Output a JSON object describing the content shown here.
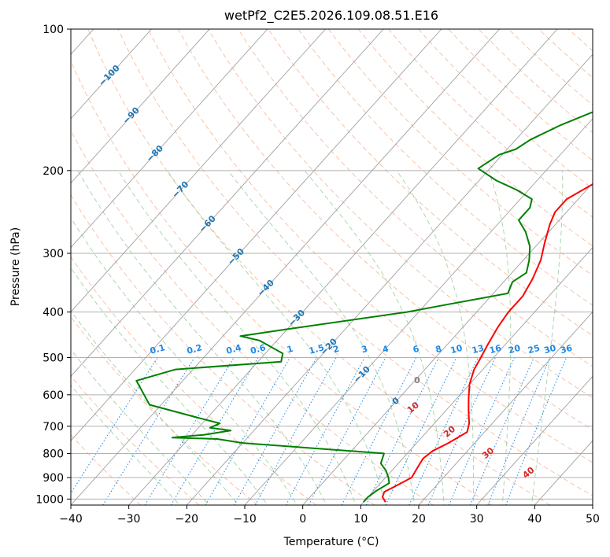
{
  "chart_data": {
    "type": "line",
    "title": "wetPf2_C2E5.2026.109.08.51.E16",
    "xlabel": "Temperature (°C)",
    "ylabel": "Pressure (hPa)",
    "xlim": [
      -40,
      50
    ],
    "ylim": [
      1030,
      100
    ],
    "y_scale": "log",
    "x_ticks": [
      "−40",
      "−30",
      "−20",
      "−10",
      "0",
      "10",
      "20",
      "30",
      "40",
      "50"
    ],
    "x_tick_values": [
      -40,
      -30,
      -20,
      -10,
      0,
      10,
      20,
      30,
      40,
      50
    ],
    "y_ticks": [
      "100",
      "200",
      "300",
      "400",
      "500",
      "600",
      "700",
      "800",
      "900",
      "1000"
    ],
    "y_tick_values": [
      100,
      200,
      300,
      400,
      500,
      600,
      700,
      800,
      900,
      1000
    ],
    "grid": true,
    "colors": {
      "temperature": "#ff0000",
      "dewpoint": "#008000",
      "isotherms": "#a0a0a0",
      "dry_adiabats": "#f4a582",
      "moist_adiabats": "#7fbf7f",
      "mixing_ratio": "#1e88e5",
      "isotherm_labels": "#1f77b4",
      "moist_labels": "#d62728",
      "zero_label": "#808080",
      "mixing_labels": "#1e88e5"
    },
    "series": [
      {
        "key": "temperature",
        "points": [
          [
            13.8,
            1015
          ],
          [
            12.5,
            990
          ],
          [
            12.0,
            965
          ],
          [
            13.0,
            940
          ],
          [
            14.5,
            900
          ],
          [
            14.0,
            860
          ],
          [
            13.5,
            820
          ],
          [
            14.0,
            790
          ],
          [
            15.5,
            760
          ],
          [
            17.0,
            720
          ],
          [
            16.0,
            690
          ],
          [
            14.0,
            650
          ],
          [
            12.0,
            610
          ],
          [
            10.0,
            570
          ],
          [
            8.5,
            530
          ],
          [
            7.8,
            500
          ],
          [
            7.0,
            470
          ],
          [
            6.0,
            430
          ],
          [
            5.5,
            400
          ],
          [
            5.5,
            370
          ],
          [
            4.5,
            340
          ],
          [
            3.0,
            310
          ],
          [
            1.0,
            285
          ],
          [
            -1.0,
            260
          ],
          [
            -2.0,
            245
          ],
          [
            -2.0,
            230
          ],
          [
            0.0,
            215
          ],
          [
            3.0,
            200
          ],
          [
            5.0,
            185
          ],
          [
            6.5,
            170
          ],
          [
            7.5,
            160
          ],
          [
            9.0,
            148
          ],
          [
            12.0,
            135
          ],
          [
            15.5,
            122
          ],
          [
            16.0,
            112
          ],
          [
            17.5,
            104
          ],
          [
            18.5,
            100
          ]
        ]
      },
      {
        "key": "dewpoint",
        "points": [
          [
            10.0,
            1015
          ],
          [
            10.0,
            990
          ],
          [
            10.5,
            960
          ],
          [
            11.5,
            925
          ],
          [
            10.5,
            900
          ],
          [
            9.0,
            870
          ],
          [
            7.0,
            840
          ],
          [
            6.0,
            800
          ],
          [
            -20.0,
            760
          ],
          [
            -25.0,
            745
          ],
          [
            -33.0,
            740
          ],
          [
            -28.0,
            730
          ],
          [
            -24.0,
            715
          ],
          [
            -28.0,
            705
          ],
          [
            -27.0,
            690
          ],
          [
            -32.0,
            670
          ],
          [
            -42.0,
            630
          ],
          [
            -48.0,
            560
          ],
          [
            -43.0,
            530
          ],
          [
            -26.0,
            510
          ],
          [
            -27.0,
            490
          ],
          [
            -33.0,
            460
          ],
          [
            -37.0,
            450
          ],
          [
            -30.0,
            435
          ],
          [
            -12.0,
            400
          ],
          [
            -6.0,
            385
          ],
          [
            2.5,
            365
          ],
          [
            1.5,
            345
          ],
          [
            2.5,
            330
          ],
          [
            1.0,
            310
          ],
          [
            -1.0,
            290
          ],
          [
            -4.0,
            270
          ],
          [
            -7.0,
            255
          ],
          [
            -7.0,
            240
          ],
          [
            -8.0,
            230
          ],
          [
            -12.0,
            220
          ],
          [
            -17.0,
            210
          ],
          [
            -22.0,
            198
          ],
          [
            -20.5,
            185
          ],
          [
            -18.5,
            180
          ],
          [
            -17.5,
            172
          ],
          [
            -14.5,
            160
          ],
          [
            -11.0,
            150
          ],
          [
            -10.5,
            135
          ],
          [
            -9.5,
            125
          ],
          [
            -7.0,
            117
          ],
          [
            -4.5,
            110
          ],
          [
            -1.0,
            100
          ]
        ]
      }
    ],
    "isotherm_labels": [
      "−100",
      "−90",
      "−80",
      "−70",
      "−60",
      "−50",
      "−40",
      "−30",
      "−20",
      "−10",
      "0"
    ],
    "isotherm_label_values": [
      -100,
      -90,
      -80,
      -70,
      -60,
      -50,
      -40,
      -30,
      -20,
      -10,
      0
    ],
    "moist_labels": [
      "10",
      "20",
      "30",
      "40"
    ],
    "moist_label_values": [
      10,
      20,
      30,
      40
    ],
    "mixing_ratio_labels": [
      "0.1",
      "0.2",
      "0.4",
      "0.6",
      "1",
      "1.5",
      "2",
      "3",
      "4",
      "6",
      "8",
      "10",
      "13",
      "16",
      "20",
      "25",
      "30",
      "36"
    ],
    "mixing_ratio_values": [
      0.1,
      0.2,
      0.4,
      0.6,
      1,
      1.5,
      2,
      3,
      4,
      6,
      8,
      10,
      13,
      16,
      20,
      25,
      30,
      36
    ]
  }
}
